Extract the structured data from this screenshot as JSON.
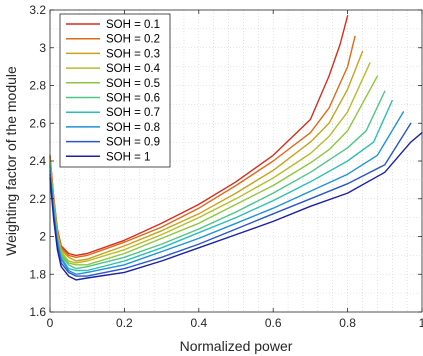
{
  "chart_data": {
    "type": "line",
    "xlabel": "Normalized power",
    "ylabel": "Weighting factor of the module",
    "xlim": [
      0,
      1
    ],
    "ylim": [
      1.6,
      3.2
    ],
    "x_ticks": [
      "0",
      "0.2",
      "0.4",
      "0.6",
      "0.8",
      "1"
    ],
    "y_ticks": [
      "1.6",
      "1.8",
      "2",
      "2.2",
      "2.4",
      "2.6",
      "2.8",
      "3",
      "3.2"
    ],
    "grid": "minor dotted",
    "legend_position": "top-left",
    "series": [
      {
        "name": "SOH = 0.1",
        "color": "#d62d1f",
        "x": [
          0,
          0.01,
          0.02,
          0.03,
          0.05,
          0.07,
          0.1,
          0.2,
          0.3,
          0.4,
          0.5,
          0.6,
          0.7,
          0.75,
          0.78,
          0.8
        ],
        "y": [
          2.43,
          2.21,
          2.04,
          1.95,
          1.91,
          1.9,
          1.91,
          1.98,
          2.07,
          2.17,
          2.29,
          2.43,
          2.62,
          2.85,
          3.02,
          3.17
        ]
      },
      {
        "name": "SOH = 0.2",
        "color": "#de6a18",
        "x": [
          0,
          0.01,
          0.02,
          0.03,
          0.05,
          0.07,
          0.1,
          0.2,
          0.3,
          0.4,
          0.5,
          0.6,
          0.7,
          0.75,
          0.8,
          0.82
        ],
        "y": [
          2.42,
          2.2,
          2.03,
          1.94,
          1.9,
          1.89,
          1.9,
          1.97,
          2.05,
          2.15,
          2.27,
          2.4,
          2.55,
          2.68,
          2.9,
          3.06
        ]
      },
      {
        "name": "SOH = 0.3",
        "color": "#c7a31a",
        "x": [
          0,
          0.01,
          0.02,
          0.03,
          0.05,
          0.07,
          0.1,
          0.2,
          0.3,
          0.4,
          0.5,
          0.6,
          0.7,
          0.75,
          0.8,
          0.84
        ],
        "y": [
          2.41,
          2.19,
          2.02,
          1.93,
          1.89,
          1.87,
          1.88,
          1.95,
          2.03,
          2.12,
          2.23,
          2.35,
          2.5,
          2.6,
          2.78,
          2.98
        ]
      },
      {
        "name": "SOH = 0.4",
        "color": "#b5bd2a",
        "x": [
          0,
          0.01,
          0.02,
          0.03,
          0.05,
          0.07,
          0.1,
          0.2,
          0.3,
          0.4,
          0.5,
          0.6,
          0.7,
          0.75,
          0.8,
          0.86
        ],
        "y": [
          2.4,
          2.18,
          2.01,
          1.92,
          1.87,
          1.86,
          1.87,
          1.93,
          2.01,
          2.1,
          2.2,
          2.31,
          2.44,
          2.53,
          2.66,
          2.92
        ]
      },
      {
        "name": "SOH = 0.5",
        "color": "#8ec63f",
        "x": [
          0,
          0.01,
          0.02,
          0.03,
          0.05,
          0.07,
          0.1,
          0.2,
          0.3,
          0.4,
          0.5,
          0.6,
          0.7,
          0.75,
          0.8,
          0.88
        ],
        "y": [
          2.39,
          2.17,
          2.0,
          1.91,
          1.86,
          1.85,
          1.85,
          1.91,
          1.99,
          2.07,
          2.17,
          2.27,
          2.39,
          2.46,
          2.56,
          2.85
        ]
      },
      {
        "name": "SOH = 0.6",
        "color": "#4fc586",
        "x": [
          0,
          0.01,
          0.02,
          0.03,
          0.05,
          0.07,
          0.1,
          0.2,
          0.3,
          0.4,
          0.5,
          0.6,
          0.7,
          0.8,
          0.85,
          0.9
        ],
        "y": [
          2.38,
          2.16,
          1.99,
          1.9,
          1.85,
          1.83,
          1.84,
          1.89,
          1.96,
          2.04,
          2.13,
          2.23,
          2.34,
          2.47,
          2.56,
          2.77
        ]
      },
      {
        "name": "SOH = 0.7",
        "color": "#2bbfb3",
        "x": [
          0,
          0.01,
          0.02,
          0.03,
          0.05,
          0.07,
          0.1,
          0.2,
          0.3,
          0.4,
          0.5,
          0.6,
          0.7,
          0.8,
          0.87,
          0.92
        ],
        "y": [
          2.37,
          2.15,
          1.98,
          1.89,
          1.83,
          1.82,
          1.82,
          1.87,
          1.94,
          2.02,
          2.1,
          2.19,
          2.29,
          2.4,
          2.5,
          2.72
        ]
      },
      {
        "name": "SOH = 0.8",
        "color": "#1f93d6",
        "x": [
          0,
          0.01,
          0.02,
          0.03,
          0.05,
          0.07,
          0.1,
          0.2,
          0.3,
          0.4,
          0.5,
          0.6,
          0.7,
          0.8,
          0.88,
          0.95
        ],
        "y": [
          2.35,
          2.13,
          1.97,
          1.88,
          1.82,
          1.8,
          1.81,
          1.85,
          1.92,
          1.99,
          2.07,
          2.15,
          2.24,
          2.33,
          2.43,
          2.66
        ]
      },
      {
        "name": "SOH = 0.9",
        "color": "#2a56c9",
        "x": [
          0,
          0.01,
          0.02,
          0.03,
          0.05,
          0.07,
          0.1,
          0.2,
          0.3,
          0.4,
          0.5,
          0.6,
          0.7,
          0.8,
          0.9,
          0.97
        ],
        "y": [
          2.33,
          2.11,
          1.95,
          1.86,
          1.81,
          1.79,
          1.79,
          1.83,
          1.89,
          1.96,
          2.04,
          2.12,
          2.2,
          2.28,
          2.38,
          2.6
        ]
      },
      {
        "name": "SOH = 1",
        "color": "#1c1fa6",
        "x": [
          0,
          0.01,
          0.02,
          0.03,
          0.05,
          0.07,
          0.1,
          0.2,
          0.3,
          0.4,
          0.5,
          0.6,
          0.7,
          0.8,
          0.9,
          0.97,
          1.0
        ],
        "y": [
          2.31,
          2.09,
          1.93,
          1.84,
          1.79,
          1.77,
          1.78,
          1.81,
          1.87,
          1.94,
          2.01,
          2.08,
          2.16,
          2.23,
          2.34,
          2.5,
          2.55
        ]
      }
    ]
  }
}
